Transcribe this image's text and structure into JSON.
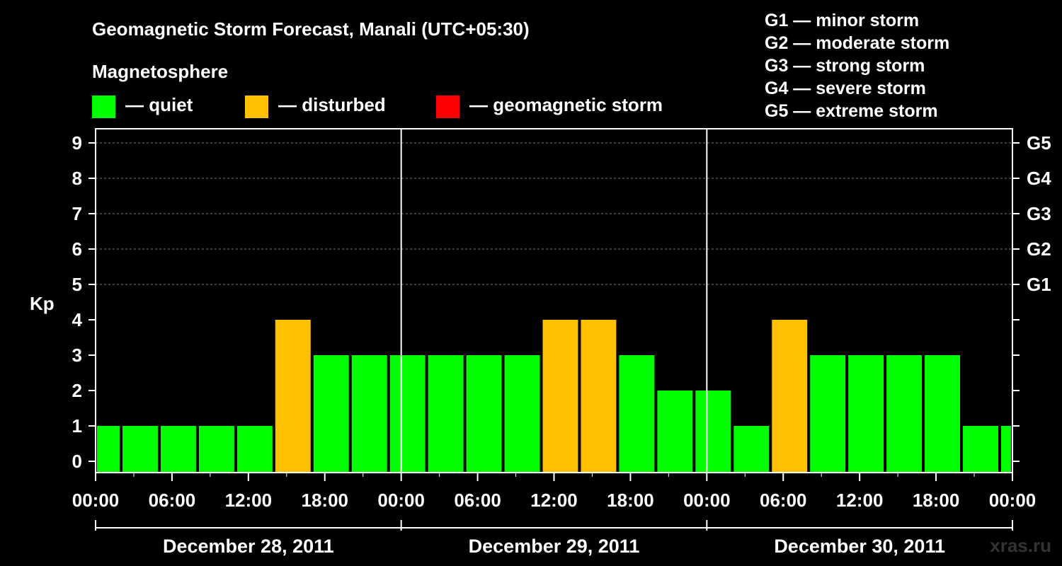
{
  "chart_data": {
    "type": "bar",
    "title": "Geomagnetic Storm Forecast, Manali (UTC+05:30)",
    "legend_title": "Magnetosphere",
    "legend": [
      {
        "label": "— quiet",
        "color": "#00FF00"
      },
      {
        "label": "— disturbed",
        "color": "#FFC000"
      },
      {
        "label": "— geomagnetic storm",
        "color": "#FF0000"
      }
    ],
    "storm_scale": [
      "G1 — minor storm",
      "G2 — moderate storm",
      "G3 — strong storm",
      "G4 — severe storm",
      "G5 — extreme storm"
    ],
    "ylabel": "Kp",
    "ylim": [
      0,
      9
    ],
    "y_ticks": [
      "0",
      "1",
      "2",
      "3",
      "4",
      "5",
      "6",
      "7",
      "8",
      "9"
    ],
    "right_axis": [
      {
        "kp": 5,
        "label": "G1"
      },
      {
        "kp": 6,
        "label": "G2"
      },
      {
        "kp": 7,
        "label": "G3"
      },
      {
        "kp": 8,
        "label": "G4"
      },
      {
        "kp": 9,
        "label": "G5"
      }
    ],
    "x_hours_total": 72,
    "x_tick_labels": [
      "00:00",
      "06:00",
      "12:00",
      "18:00",
      "00:00",
      "06:00",
      "12:00",
      "18:00",
      "00:00",
      "06:00",
      "12:00",
      "18:00",
      "00:00"
    ],
    "days": [
      "December 28, 2011",
      "December 29, 2011",
      "December 30, 2011"
    ],
    "bars": [
      {
        "start": 0,
        "end": 2,
        "kp": 1
      },
      {
        "start": 2,
        "end": 5,
        "kp": 1
      },
      {
        "start": 5,
        "end": 8,
        "kp": 1
      },
      {
        "start": 8,
        "end": 11,
        "kp": 1
      },
      {
        "start": 11,
        "end": 14,
        "kp": 1
      },
      {
        "start": 14,
        "end": 17,
        "kp": 4
      },
      {
        "start": 17,
        "end": 20,
        "kp": 3
      },
      {
        "start": 20,
        "end": 23,
        "kp": 3
      },
      {
        "start": 23,
        "end": 26,
        "kp": 3
      },
      {
        "start": 26,
        "end": 29,
        "kp": 3
      },
      {
        "start": 29,
        "end": 32,
        "kp": 3
      },
      {
        "start": 32,
        "end": 35,
        "kp": 3
      },
      {
        "start": 35,
        "end": 38,
        "kp": 4
      },
      {
        "start": 38,
        "end": 41,
        "kp": 4
      },
      {
        "start": 41,
        "end": 44,
        "kp": 3
      },
      {
        "start": 44,
        "end": 47,
        "kp": 2
      },
      {
        "start": 47,
        "end": 50,
        "kp": 2
      },
      {
        "start": 50,
        "end": 53,
        "kp": 1
      },
      {
        "start": 53,
        "end": 56,
        "kp": 4
      },
      {
        "start": 56,
        "end": 59,
        "kp": 3
      },
      {
        "start": 59,
        "end": 62,
        "kp": 3
      },
      {
        "start": 62,
        "end": 65,
        "kp": 3
      },
      {
        "start": 65,
        "end": 68,
        "kp": 3
      },
      {
        "start": 68,
        "end": 71,
        "kp": 1
      },
      {
        "start": 71,
        "end": 72,
        "kp": 1
      }
    ],
    "colors": {
      "quiet": "#00FF00",
      "disturbed": "#FFC000",
      "storm": "#FF0000"
    },
    "watermark": "xras.ru",
    "grid": true
  }
}
